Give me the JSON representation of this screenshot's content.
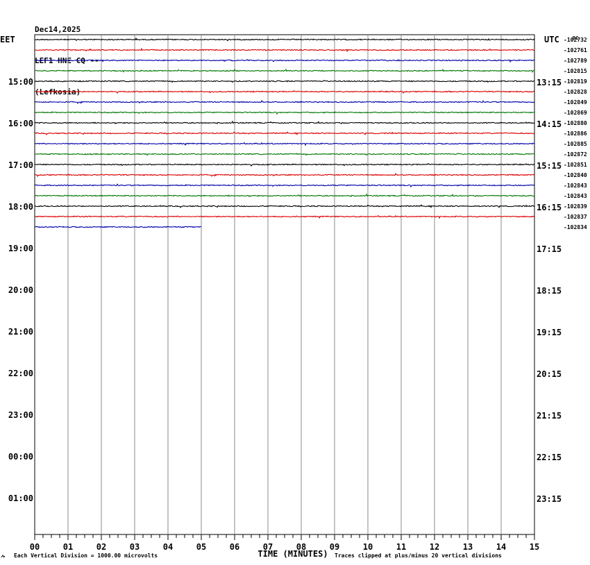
{
  "header": {
    "date": "Dec14,2025",
    "station": "LEF1 HNE CQ --",
    "location": "(Lefkosia)"
  },
  "chart_data": {
    "type": "line",
    "left_timezone": "EET",
    "right_timezone": "UTC",
    "corner_label": "DC",
    "xlabel": "TIME (MINUTES)",
    "x_ticks": [
      "00",
      "01",
      "02",
      "03",
      "04",
      "05",
      "06",
      "07",
      "08",
      "09",
      "10",
      "11",
      "12",
      "13",
      "14",
      "15"
    ],
    "left_hour_labels": [
      "15:00",
      "16:00",
      "17:00",
      "18:00",
      "19:00",
      "20:00",
      "21:00",
      "22:00",
      "23:00",
      "00:00",
      "01:00"
    ],
    "right_hour_labels": [
      "13:15",
      "14:15",
      "15:15",
      "16:15",
      "17:15",
      "18:15",
      "19:15",
      "20:15",
      "21:15",
      "22:15",
      "23:15"
    ],
    "trace_colors": [
      "#000000",
      "#dd0000",
      "#0000aa",
      "#007700"
    ],
    "traces": [
      {
        "dc_offset": "-102732",
        "end_minute": 15
      },
      {
        "dc_offset": "-102761",
        "end_minute": 15
      },
      {
        "dc_offset": "-102789",
        "end_minute": 15
      },
      {
        "dc_offset": "-102815",
        "end_minute": 15
      },
      {
        "dc_offset": "-102819",
        "end_minute": 15
      },
      {
        "dc_offset": "-102828",
        "end_minute": 15
      },
      {
        "dc_offset": "-102849",
        "end_minute": 15
      },
      {
        "dc_offset": "-102869",
        "end_minute": 15
      },
      {
        "dc_offset": "-102880",
        "end_minute": 15
      },
      {
        "dc_offset": "-102886",
        "end_minute": 15
      },
      {
        "dc_offset": "-102885",
        "end_minute": 15
      },
      {
        "dc_offset": "-102872",
        "end_minute": 15
      },
      {
        "dc_offset": "-102851",
        "end_minute": 15
      },
      {
        "dc_offset": "-102840",
        "end_minute": 15
      },
      {
        "dc_offset": "-102843",
        "end_minute": 15
      },
      {
        "dc_offset": "-102843",
        "end_minute": 15
      },
      {
        "dc_offset": "-102839",
        "end_minute": 15
      },
      {
        "dc_offset": "-102837",
        "end_minute": 15
      },
      {
        "dc_offset": "-102834",
        "end_minute": 5
      }
    ],
    "footer_left": "Each Vertical Division = 1000.00 microvolts",
    "footer_right": "Traces clipped at plus/minus 20 vertical divisions"
  }
}
